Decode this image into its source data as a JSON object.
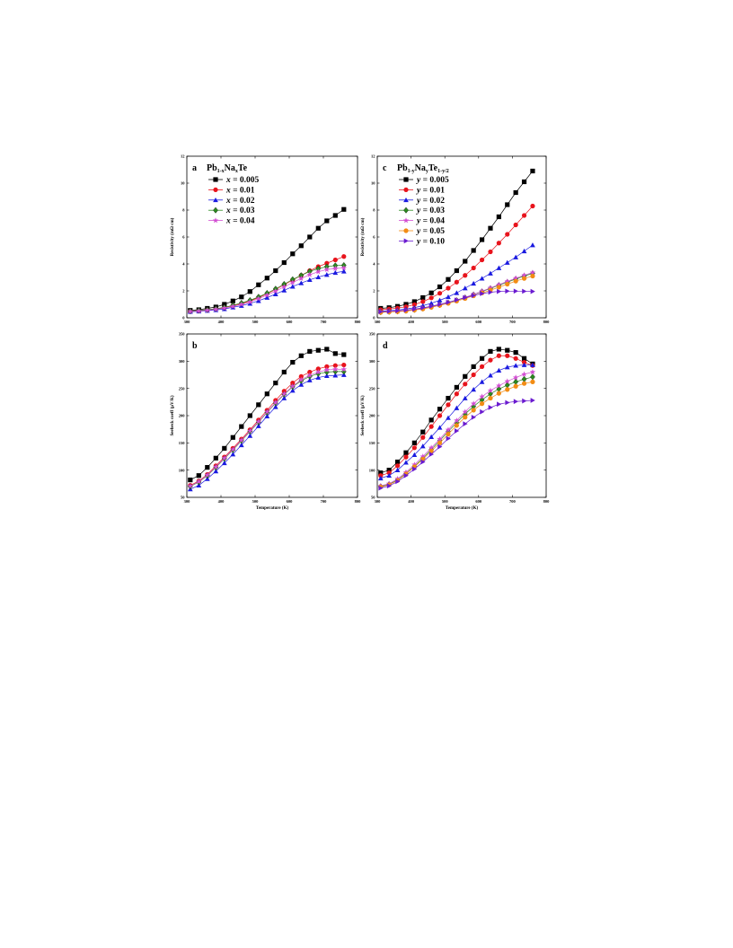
{
  "chart_data": [
    {
      "panel": "a",
      "type": "line",
      "legend_title": "Pb1-xNaxTe",
      "legend_title_parts": {
        "p1": "Pb",
        "s1": "1-x",
        "p2": "Na",
        "s2": "x",
        "p3": "Te"
      },
      "legend_var": "x",
      "legend_placement": "top-left",
      "xlabel": "",
      "ylabel": "Resistivity (mΩ cm)",
      "xlim": [
        300,
        800
      ],
      "ylim": [
        0,
        12
      ],
      "xticks": [
        300,
        400,
        500,
        600,
        700,
        800
      ],
      "yticks": [
        0,
        2,
        4,
        6,
        8,
        10,
        12
      ],
      "x": [
        310,
        335,
        360,
        385,
        410,
        435,
        460,
        485,
        510,
        535,
        560,
        585,
        610,
        635,
        660,
        685,
        710,
        735,
        760
      ],
      "series": [
        {
          "name": "x = 0.005",
          "value": "0.005",
          "color": "#000000",
          "marker": "square",
          "values": [
            0.55,
            0.6,
            0.7,
            0.8,
            1.0,
            1.25,
            1.55,
            1.95,
            2.45,
            2.95,
            3.5,
            4.1,
            4.75,
            5.35,
            6.0,
            6.65,
            7.2,
            7.6,
            8.05
          ]
        },
        {
          "name": "x = 0.01",
          "value": "0.01",
          "color": "#e8141c",
          "marker": "circle",
          "values": [
            0.48,
            0.52,
            0.58,
            0.65,
            0.75,
            0.9,
            1.05,
            1.25,
            1.5,
            1.78,
            2.1,
            2.45,
            2.8,
            3.15,
            3.5,
            3.8,
            4.05,
            4.3,
            4.55
          ]
        },
        {
          "name": "x = 0.02",
          "value": "0.02",
          "color": "#1a1ae0",
          "marker": "triangle",
          "values": [
            0.45,
            0.48,
            0.53,
            0.58,
            0.66,
            0.78,
            0.9,
            1.06,
            1.26,
            1.5,
            1.76,
            2.04,
            2.32,
            2.58,
            2.82,
            3.02,
            3.2,
            3.35,
            3.45
          ]
        },
        {
          "name": "x = 0.03",
          "value": "0.03",
          "color": "#2a8a1e",
          "marker": "diamond",
          "values": [
            0.5,
            0.55,
            0.6,
            0.68,
            0.78,
            0.93,
            1.1,
            1.3,
            1.55,
            1.83,
            2.15,
            2.5,
            2.85,
            3.15,
            3.45,
            3.65,
            3.8,
            3.88,
            3.9
          ]
        },
        {
          "name": "x = 0.04",
          "value": "0.04",
          "color": "#d24ed2",
          "marker": "star",
          "values": [
            0.47,
            0.5,
            0.56,
            0.63,
            0.72,
            0.85,
            1.0,
            1.18,
            1.42,
            1.68,
            1.98,
            2.3,
            2.62,
            2.92,
            3.2,
            3.42,
            3.58,
            3.66,
            3.7
          ]
        }
      ]
    },
    {
      "panel": "b",
      "type": "line",
      "xlabel": "Temperature (K)",
      "ylabel": "Seebeck coeff (μV/K)",
      "xlim": [
        300,
        800
      ],
      "ylim": [
        50,
        350
      ],
      "xticks": [
        300,
        400,
        500,
        600,
        700,
        800
      ],
      "yticks": [
        50,
        100,
        150,
        200,
        250,
        300,
        350
      ],
      "x": [
        310,
        335,
        360,
        385,
        410,
        435,
        460,
        485,
        510,
        535,
        560,
        585,
        610,
        635,
        660,
        685,
        710,
        735,
        760
      ],
      "series": [
        {
          "name": "x = 0.005",
          "color": "#000000",
          "marker": "square",
          "values": [
            82,
            90,
            105,
            122,
            140,
            160,
            180,
            200,
            220,
            240,
            260,
            280,
            298,
            310,
            318,
            320,
            322,
            314,
            312
          ]
        },
        {
          "name": "x = 0.01",
          "color": "#e8141c",
          "marker": "circle",
          "values": [
            72,
            80,
            92,
            108,
            124,
            140,
            157,
            174,
            192,
            210,
            228,
            245,
            260,
            272,
            280,
            286,
            290,
            292,
            293
          ]
        },
        {
          "name": "x = 0.02",
          "color": "#1a1ae0",
          "marker": "triangle",
          "values": [
            65,
            72,
            84,
            98,
            113,
            129,
            146,
            163,
            181,
            199,
            216,
            232,
            246,
            257,
            265,
            270,
            273,
            274,
            275
          ]
        },
        {
          "name": "x = 0.03",
          "color": "#2a8a1e",
          "marker": "diamond",
          "values": [
            70,
            78,
            90,
            105,
            121,
            137,
            154,
            171,
            188,
            206,
            223,
            239,
            253,
            264,
            272,
            277,
            280,
            281,
            281
          ]
        },
        {
          "name": "x = 0.04",
          "color": "#d24ed2",
          "marker": "star",
          "values": [
            71,
            79,
            91,
            106,
            122,
            138,
            155,
            172,
            189,
            207,
            224,
            240,
            254,
            266,
            274,
            280,
            284,
            285,
            285
          ]
        }
      ]
    },
    {
      "panel": "c",
      "type": "line",
      "legend_title": "Pb1-yNayTe1-y/2",
      "legend_title_parts": {
        "p1": "Pb",
        "s1": "1-y",
        "p2": "Na",
        "s2": "y",
        "p3": "Te",
        "s3": "1-y/2"
      },
      "legend_var": "y",
      "legend_placement": "top-left",
      "xlabel": "",
      "ylabel": "Resistivity (mΩ cm)",
      "xlim": [
        300,
        800
      ],
      "ylim": [
        0,
        12
      ],
      "xticks": [
        300,
        400,
        500,
        600,
        700,
        800
      ],
      "yticks": [
        0,
        2,
        4,
        6,
        8,
        10,
        12
      ],
      "x": [
        310,
        335,
        360,
        385,
        410,
        435,
        460,
        485,
        510,
        535,
        560,
        585,
        610,
        635,
        660,
        685,
        710,
        735,
        760
      ],
      "series": [
        {
          "name": "y = 0.005",
          "value": "0.005",
          "color": "#000000",
          "marker": "square",
          "values": [
            0.7,
            0.75,
            0.85,
            1.0,
            1.2,
            1.5,
            1.85,
            2.3,
            2.85,
            3.5,
            4.2,
            5.0,
            5.8,
            6.65,
            7.5,
            8.4,
            9.3,
            10.1,
            10.9
          ]
        },
        {
          "name": "y = 0.01",
          "value": "0.01",
          "color": "#e8141c",
          "marker": "circle",
          "values": [
            0.6,
            0.65,
            0.72,
            0.82,
            0.98,
            1.2,
            1.48,
            1.82,
            2.2,
            2.65,
            3.15,
            3.7,
            4.3,
            4.9,
            5.55,
            6.2,
            6.9,
            7.6,
            8.3
          ]
        },
        {
          "name": "y = 0.02",
          "value": "0.02",
          "color": "#1a1ae0",
          "marker": "triangle",
          "values": [
            0.5,
            0.53,
            0.58,
            0.65,
            0.75,
            0.9,
            1.08,
            1.3,
            1.55,
            1.85,
            2.2,
            2.55,
            2.92,
            3.3,
            3.7,
            4.1,
            4.5,
            4.95,
            5.4
          ]
        },
        {
          "name": "y = 0.03",
          "value": "0.03",
          "color": "#2a8a1e",
          "marker": "diamond",
          "values": [
            0.42,
            0.45,
            0.48,
            0.53,
            0.6,
            0.7,
            0.82,
            0.96,
            1.12,
            1.3,
            1.5,
            1.72,
            1.95,
            2.18,
            2.42,
            2.65,
            2.88,
            3.1,
            3.3
          ]
        },
        {
          "name": "y = 0.04",
          "value": "0.04",
          "color": "#d24ed2",
          "marker": "star",
          "values": [
            0.43,
            0.46,
            0.49,
            0.54,
            0.61,
            0.71,
            0.83,
            0.97,
            1.13,
            1.32,
            1.52,
            1.74,
            1.98,
            2.22,
            2.46,
            2.7,
            2.94,
            3.16,
            3.36
          ]
        },
        {
          "name": "y = 0.05",
          "value": "0.05",
          "color": "#f28c14",
          "marker": "circle",
          "values": [
            0.4,
            0.43,
            0.46,
            0.5,
            0.57,
            0.66,
            0.78,
            0.92,
            1.07,
            1.24,
            1.43,
            1.63,
            1.84,
            2.05,
            2.27,
            2.5,
            2.72,
            2.92,
            3.1
          ]
        },
        {
          "name": "y = 0.10",
          "value": "0.10",
          "color": "#6a1ad0",
          "marker": "triangle-right",
          "values": [
            0.45,
            0.48,
            0.52,
            0.57,
            0.64,
            0.74,
            0.86,
            1.0,
            1.15,
            1.32,
            1.5,
            1.66,
            1.8,
            1.9,
            1.96,
            1.98,
            1.98,
            1.97,
            1.96
          ]
        }
      ]
    },
    {
      "panel": "d",
      "type": "line",
      "xlabel": "Temperature (K)",
      "ylabel": "Seebeck coeff (μV/K)",
      "xlim": [
        300,
        800
      ],
      "ylim": [
        50,
        350
      ],
      "xticks": [
        300,
        400,
        500,
        600,
        700,
        800
      ],
      "yticks": [
        50,
        100,
        150,
        200,
        250,
        300,
        350
      ],
      "x": [
        310,
        335,
        360,
        385,
        410,
        435,
        460,
        485,
        510,
        535,
        560,
        585,
        610,
        635,
        660,
        685,
        710,
        735,
        760
      ],
      "series": [
        {
          "name": "y = 0.005",
          "color": "#000000",
          "marker": "square",
          "values": [
            95,
            100,
            115,
            132,
            150,
            170,
            192,
            212,
            232,
            252,
            272,
            290,
            305,
            318,
            322,
            320,
            316,
            305,
            295
          ]
        },
        {
          "name": "y = 0.01",
          "color": "#e8141c",
          "marker": "circle",
          "values": [
            90,
            95,
            108,
            124,
            141,
            160,
            180,
            200,
            220,
            240,
            258,
            275,
            290,
            302,
            310,
            310,
            305,
            298,
            292
          ]
        },
        {
          "name": "y = 0.02",
          "color": "#1a1ae0",
          "marker": "triangle",
          "values": [
            85,
            90,
            100,
            114,
            128,
            144,
            161,
            178,
            196,
            214,
            232,
            248,
            262,
            274,
            283,
            289,
            292,
            293,
            293
          ]
        },
        {
          "name": "y = 0.03",
          "color": "#2a8a1e",
          "marker": "diamond",
          "values": [
            70,
            74,
            82,
            94,
            107,
            122,
            138,
            154,
            171,
            187,
            203,
            217,
            229,
            240,
            249,
            256,
            262,
            267,
            271
          ]
        },
        {
          "name": "y = 0.04",
          "color": "#d24ed2",
          "marker": "star",
          "values": [
            71,
            75,
            84,
            96,
            110,
            125,
            141,
            157,
            174,
            191,
            207,
            222,
            235,
            246,
            255,
            263,
            270,
            276,
            280
          ]
        },
        {
          "name": "y = 0.05",
          "color": "#f28c14",
          "marker": "circle",
          "values": [
            69,
            73,
            81,
            93,
            106,
            120,
            135,
            150,
            166,
            182,
            197,
            210,
            222,
            232,
            241,
            248,
            254,
            259,
            262
          ]
        },
        {
          "name": "y = 0.10",
          "color": "#6a1ad0",
          "marker": "triangle-right",
          "values": [
            67,
            71,
            79,
            90,
            102,
            115,
            129,
            143,
            158,
            172,
            185,
            197,
            207,
            215,
            221,
            224,
            226,
            227,
            228
          ]
        }
      ]
    }
  ]
}
